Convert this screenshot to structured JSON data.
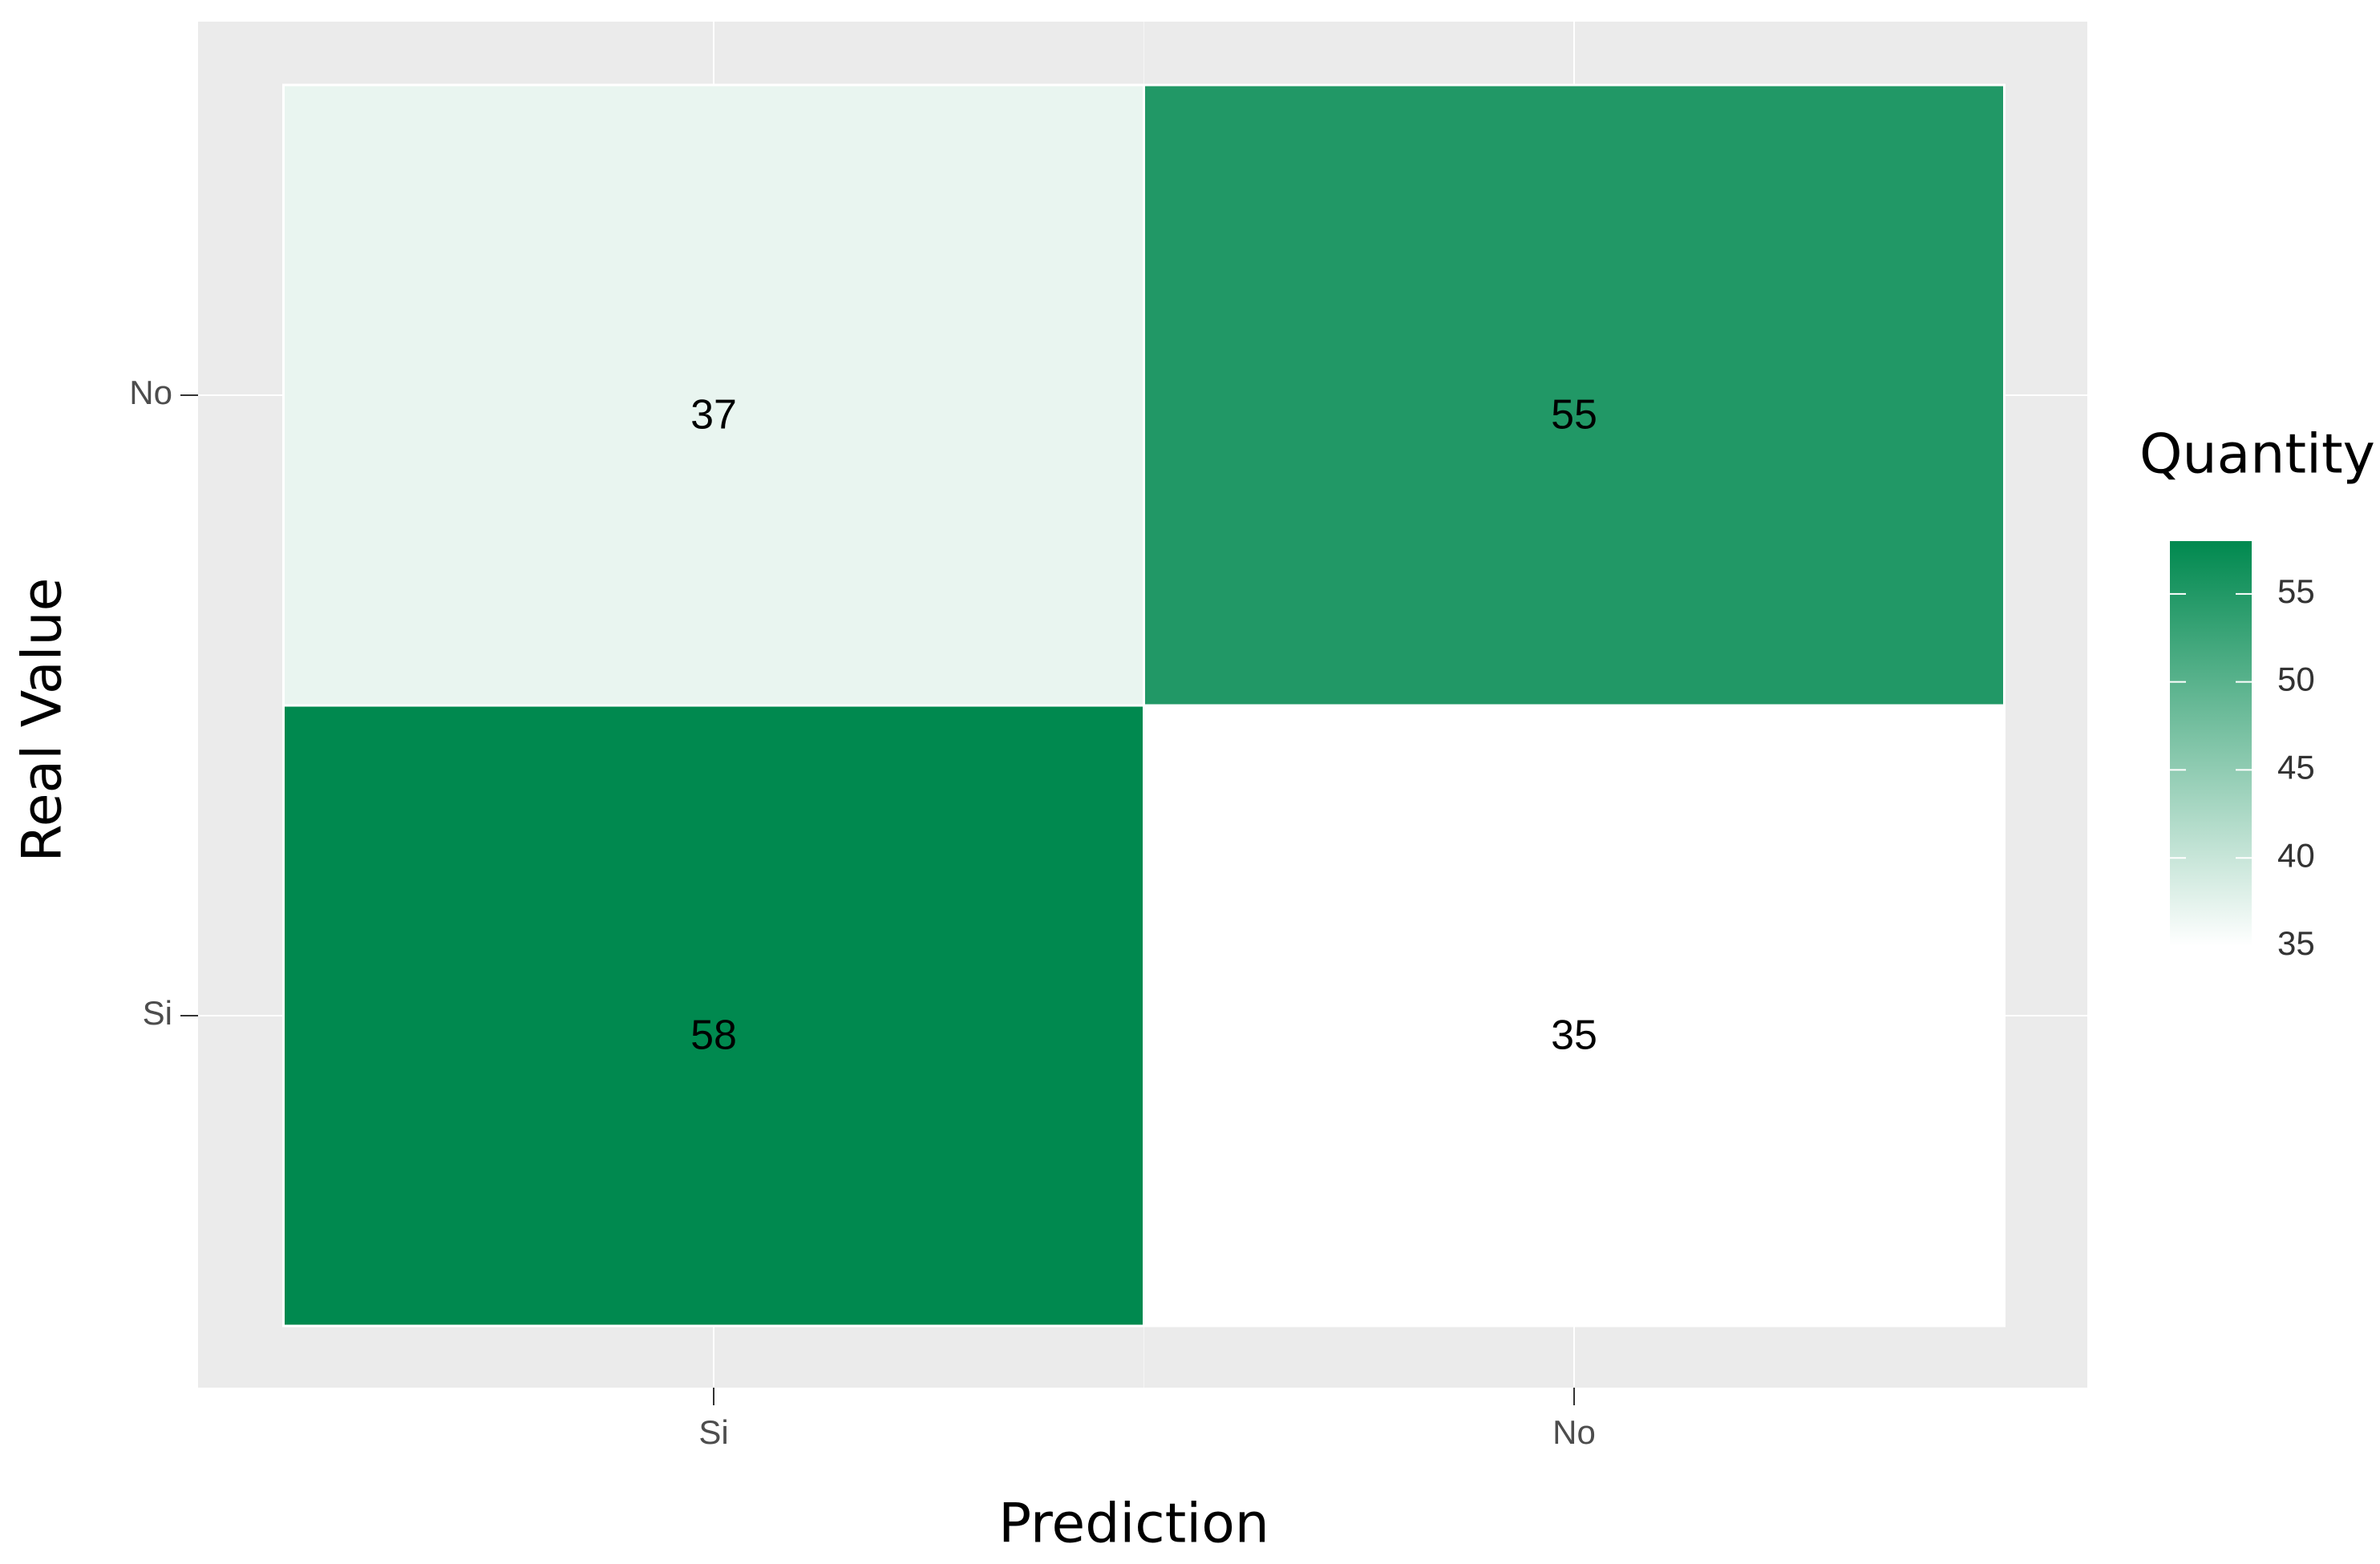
{
  "chart_data": {
    "type": "heatmap",
    "x_label": "Prediction",
    "y_label": "Real Value",
    "legend_title": "Quantity",
    "x_categories": [
      "Si",
      "No"
    ],
    "y_categories": [
      "No",
      "Si"
    ],
    "values": [
      [
        37,
        55
      ],
      [
        58,
        35
      ]
    ],
    "color_low": "#ffffff",
    "color_high": "#00894f",
    "color_lim": [
      35,
      58
    ],
    "color_ticks": [
      35,
      40,
      45,
      50,
      55
    ],
    "grid": true
  }
}
